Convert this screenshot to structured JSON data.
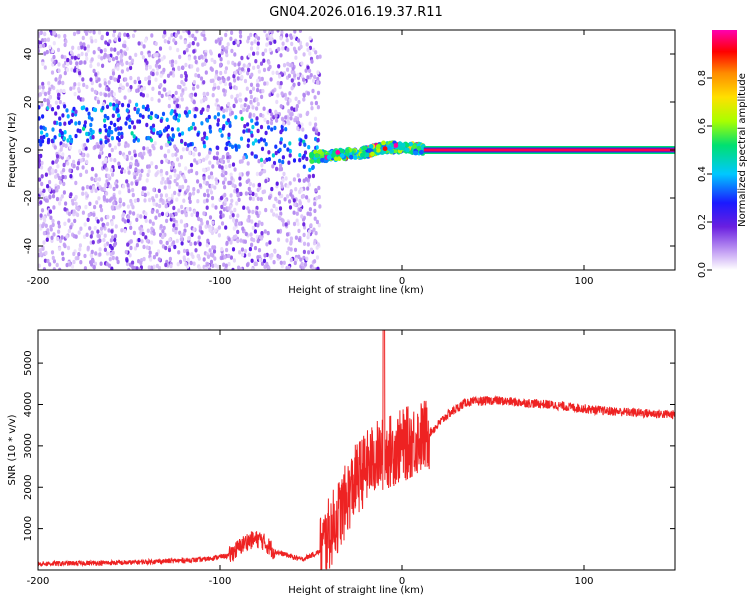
{
  "figure_title": "GN04.2026.016.19.37.R11",
  "chart_data": [
    {
      "type": "heatmap",
      "name": "spectrogram",
      "xlabel": "Height of straight line (km)",
      "ylabel": "Frequency (Hz)",
      "xlim": [
        -200,
        150
      ],
      "ylim": [
        -50,
        50
      ],
      "xticks": [
        -200,
        -100,
        0,
        100
      ],
      "yticks": [
        -40,
        -20,
        0,
        20,
        40
      ],
      "colorbar": {
        "label": "Normalized spectral amplitude",
        "range": [
          0.0,
          1.0
        ],
        "ticks": [
          0.0,
          0.2,
          0.4,
          0.6,
          0.8
        ],
        "colors": [
          "#ffffff",
          "#c9a8f5",
          "#6a1fe0",
          "#1a1aff",
          "#00c8ff",
          "#00e070",
          "#a8ff00",
          "#ffe000",
          "#ff8c00",
          "#ff0000",
          "#ff00b0"
        ]
      },
      "features": {
        "scatter_region_x": [
          -200,
          -45
        ],
        "noisy_band_center_hz": [
          {
            "x": -195,
            "f": 10
          },
          {
            "x": -160,
            "f": 11
          },
          {
            "x": -140,
            "f": 12
          },
          {
            "x": -120,
            "f": 9
          },
          {
            "x": -100,
            "f": 7
          },
          {
            "x": -80,
            "f": 4
          },
          {
            "x": -60,
            "f": 1
          },
          {
            "x": -45,
            "f": -2
          }
        ],
        "bright_band_x": [
          -50,
          12
        ],
        "bright_band_center_hz": [
          {
            "x": -50,
            "f": -3
          },
          {
            "x": -35,
            "f": -2
          },
          {
            "x": -20,
            "f": -1
          },
          {
            "x": -10,
            "f": 1
          },
          {
            "x": 0,
            "f": 1
          },
          {
            "x": 12,
            "f": 0.5
          }
        ],
        "tone_line_x": [
          12,
          150
        ],
        "tone_line_hz": 0,
        "tone_line_amplitude": 0.95
      }
    },
    {
      "type": "line",
      "name": "snr",
      "xlabel": "Height of straight line (km)",
      "ylabel": "SNR (10 * v/v)",
      "xlim": [
        -200,
        150
      ],
      "ylim": [
        0,
        5800
      ],
      "xticks": [
        -200,
        -100,
        0,
        100
      ],
      "yticks": [
        1000,
        2000,
        3000,
        4000,
        5000
      ],
      "color": "#ee2222",
      "series_envelope": [
        {
          "x": -200,
          "y": 150
        },
        {
          "x": -150,
          "y": 180
        },
        {
          "x": -110,
          "y": 250
        },
        {
          "x": -95,
          "y": 350
        },
        {
          "x": -85,
          "y": 700
        },
        {
          "x": -78,
          "y": 750
        },
        {
          "x": -70,
          "y": 450
        },
        {
          "x": -55,
          "y": 250
        },
        {
          "x": -45,
          "y": 450
        },
        {
          "x": -35,
          "y": 1300
        },
        {
          "x": -25,
          "y": 2200
        },
        {
          "x": -15,
          "y": 2700
        },
        {
          "x": -5,
          "y": 2900
        },
        {
          "x": 5,
          "y": 3100
        },
        {
          "x": 15,
          "y": 3300
        },
        {
          "x": 25,
          "y": 3750
        },
        {
          "x": 35,
          "y": 4050
        },
        {
          "x": 50,
          "y": 4100
        },
        {
          "x": 80,
          "y": 4000
        },
        {
          "x": 110,
          "y": 3850
        },
        {
          "x": 150,
          "y": 3750
        }
      ],
      "spike": {
        "x": -10,
        "y": 5800
      }
    }
  ]
}
